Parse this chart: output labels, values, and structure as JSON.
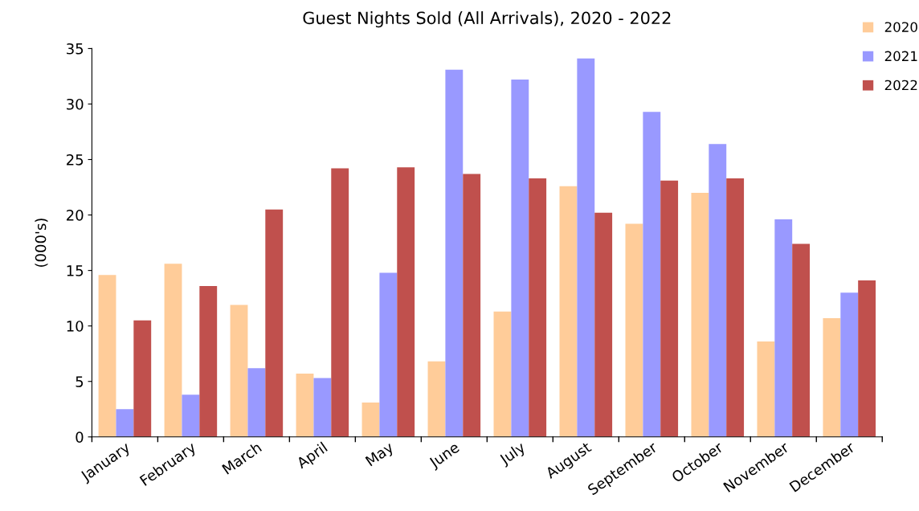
{
  "chart_data": {
    "type": "bar",
    "title": "Guest Nights Sold (All Arrivals), 2020 - 2022",
    "ylabel": "(000's)",
    "categories": [
      "January",
      "February",
      "March",
      "April",
      "May",
      "June",
      "July",
      "August",
      "September",
      "October",
      "November",
      "December"
    ],
    "series": [
      {
        "name": "2020",
        "color": "#ffcc99",
        "values": [
          14.6,
          15.6,
          11.9,
          5.7,
          3.1,
          6.8,
          11.3,
          22.6,
          19.2,
          22.0,
          8.6,
          10.7
        ]
      },
      {
        "name": "2021",
        "color": "#9999ff",
        "values": [
          2.5,
          3.8,
          6.2,
          5.3,
          14.8,
          33.1,
          32.2,
          34.1,
          29.3,
          26.4,
          19.6,
          13.0
        ]
      },
      {
        "name": "2022",
        "color": "#c0504d",
        "values": [
          10.5,
          13.6,
          20.5,
          24.2,
          24.3,
          23.7,
          23.3,
          20.2,
          23.1,
          23.3,
          17.4,
          14.1
        ]
      }
    ],
    "ylim": [
      0,
      35
    ],
    "yticks": [
      0,
      5,
      10,
      15,
      20,
      25,
      30,
      35
    ],
    "grid": false,
    "legend": "top right"
  }
}
